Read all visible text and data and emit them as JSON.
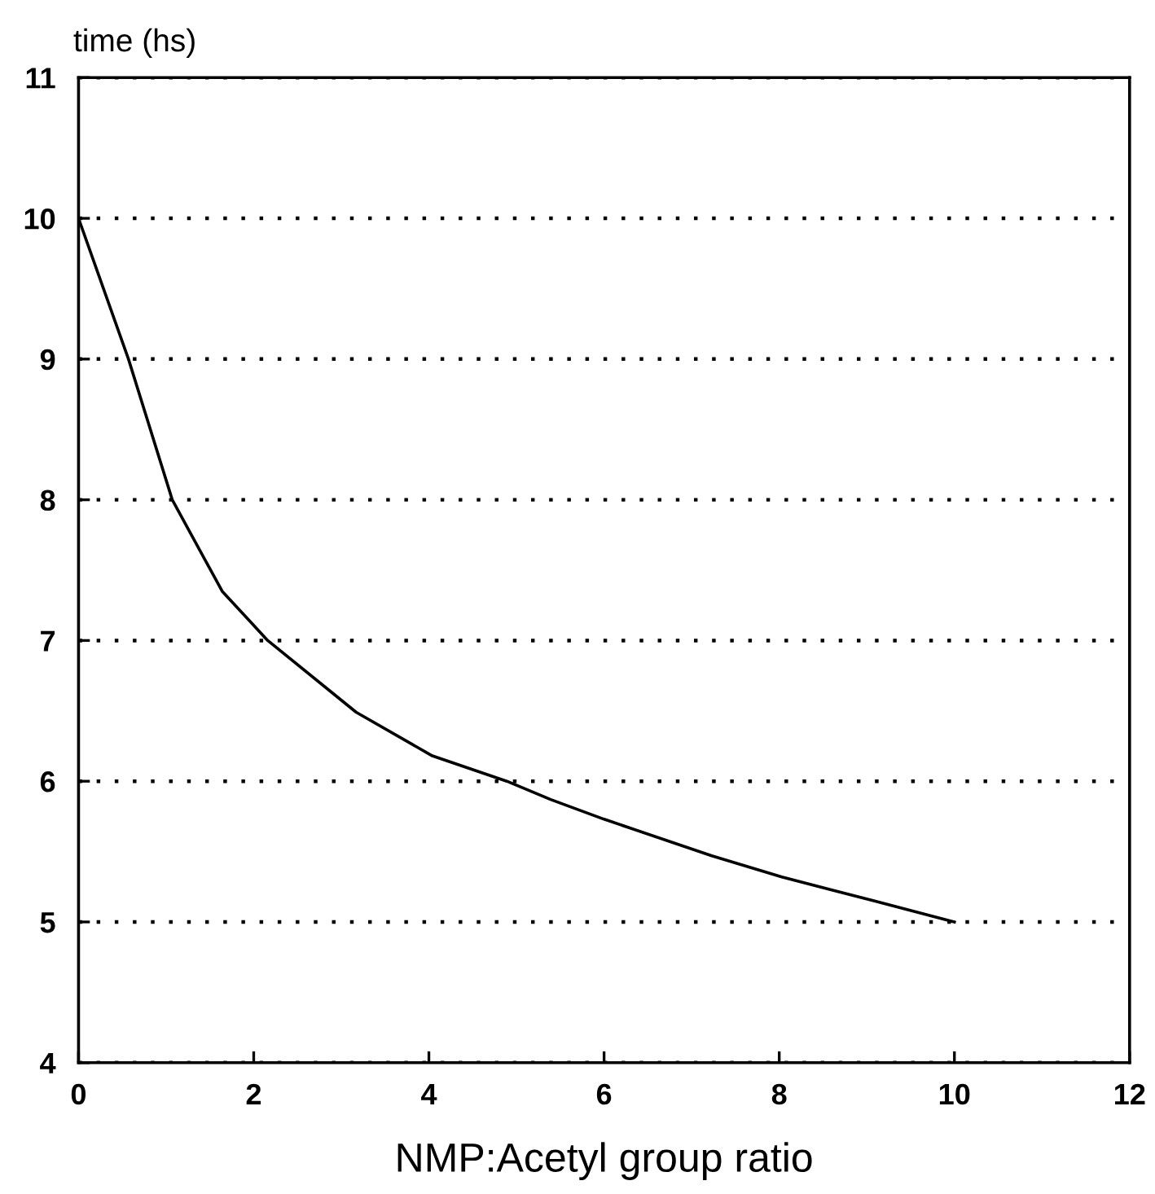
{
  "chart_data": {
    "type": "line",
    "ylabel": "time (hs)",
    "xlabel": "NMP:Acetyl group ratio",
    "x": [
      0,
      0.57,
      1.07,
      1.64,
      2.16,
      3.17,
      4.04,
      4.89,
      5.39,
      6.0,
      7.23,
      8.03,
      9.08,
      10.0
    ],
    "series": [
      {
        "color": "#000000",
        "values": [
          10.0,
          9.0,
          8.0,
          7.35,
          7.0,
          6.49,
          6.18,
          6.0,
          5.87,
          5.73,
          5.47,
          5.32,
          5.15,
          5.0
        ]
      }
    ],
    "xlim": [
      0,
      12
    ],
    "ylim": [
      4,
      11
    ],
    "xticks": [
      0,
      2,
      4,
      6,
      8,
      10,
      12
    ],
    "yticks": [
      4,
      5,
      6,
      7,
      8,
      9,
      10,
      11
    ],
    "grid": "y",
    "marker": "none",
    "line_style": "solid"
  }
}
